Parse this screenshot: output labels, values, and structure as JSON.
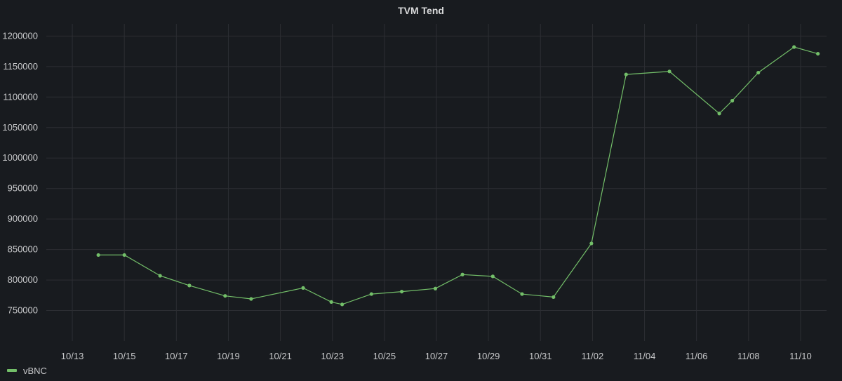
{
  "panel": {
    "title": "TVM Tend"
  },
  "colors": {
    "background": "#181b1f",
    "grid": "#2c2e33",
    "text": "#c7c8ca",
    "series": "#73bf69"
  },
  "chart_data": {
    "type": "line",
    "title": "TVM Tend",
    "xlabel": "",
    "ylabel": "",
    "x_axis": {
      "type": "date",
      "range": [
        "10/12",
        "11/11"
      ],
      "ticks": [
        "10/13",
        "10/15",
        "10/17",
        "10/19",
        "10/21",
        "10/23",
        "10/25",
        "10/27",
        "10/29",
        "10/31",
        "11/02",
        "11/04",
        "11/06",
        "11/08",
        "11/10"
      ]
    },
    "y_axis": {
      "range": [
        700000,
        1220000
      ],
      "ticks": [
        750000,
        800000,
        850000,
        900000,
        950000,
        1000000,
        1050000,
        1100000,
        1150000,
        1200000
      ]
    },
    "grid": true,
    "legend": "bottom-left",
    "series": [
      {
        "name": "vBNC",
        "color": "#73bf69",
        "points": [
          {
            "x": "10/14 00:00",
            "y": 841000
          },
          {
            "x": "10/15 00:00",
            "y": 841000
          },
          {
            "x": "10/16 09:00",
            "y": 807000
          },
          {
            "x": "10/17 12:00",
            "y": 791000
          },
          {
            "x": "10/18 21:00",
            "y": 774000
          },
          {
            "x": "10/19 21:00",
            "y": 769000
          },
          {
            "x": "10/21 21:00",
            "y": 787000
          },
          {
            "x": "10/22 23:00",
            "y": 764000
          },
          {
            "x": "10/23 09:00",
            "y": 760000
          },
          {
            "x": "10/24 12:00",
            "y": 777000
          },
          {
            "x": "10/25 16:00",
            "y": 781000
          },
          {
            "x": "10/26 23:00",
            "y": 786000
          },
          {
            "x": "10/28 00:00",
            "y": 809000
          },
          {
            "x": "10/29 04:00",
            "y": 806000
          },
          {
            "x": "10/30 07:00",
            "y": 777000
          },
          {
            "x": "10/31 12:00",
            "y": 772000
          },
          {
            "x": "11/01 23:00",
            "y": 860000
          },
          {
            "x": "11/03 07:00",
            "y": 1137000
          },
          {
            "x": "11/04 23:00",
            "y": 1142000
          },
          {
            "x": "11/06 21:00",
            "y": 1073000
          },
          {
            "x": "11/07 09:00",
            "y": 1094000
          },
          {
            "x": "11/08 09:00",
            "y": 1140000
          },
          {
            "x": "11/09 18:00",
            "y": 1182000
          },
          {
            "x": "11/10 16:00",
            "y": 1171000
          }
        ]
      }
    ]
  }
}
